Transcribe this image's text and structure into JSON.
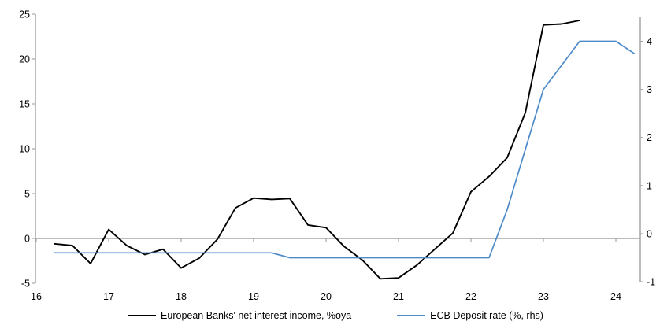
{
  "chart_data": {
    "type": "line",
    "title": "",
    "x": [
      16.25,
      16.5,
      16.75,
      17.0,
      17.25,
      17.5,
      17.75,
      18.0,
      18.25,
      18.5,
      18.75,
      19.0,
      19.25,
      19.5,
      19.75,
      20.0,
      20.25,
      20.5,
      20.75,
      21.0,
      21.25,
      21.5,
      21.75,
      22.0,
      22.25,
      22.5,
      22.75,
      23.0,
      23.25,
      23.5,
      23.75,
      24.0,
      24.25
    ],
    "series": [
      {
        "name": "European Banks' net interest income, %oya",
        "axis": "left",
        "color": "#000000",
        "values": [
          -0.6,
          -0.8,
          -2.8,
          1.0,
          -0.8,
          -1.8,
          -1.2,
          -3.3,
          -2.2,
          -0.1,
          3.4,
          4.5,
          4.35,
          4.45,
          1.5,
          1.2,
          -0.9,
          -2.4,
          -4.5,
          -4.4,
          -3.0,
          -1.2,
          0.6,
          5.2,
          6.9,
          9.0,
          14.0,
          23.8,
          23.9,
          24.3
        ]
      },
      {
        "name": "ECB Deposit rate (%, rhs)",
        "axis": "right",
        "color": "#4d8bc8",
        "values": [
          -0.4,
          -0.4,
          -0.4,
          -0.4,
          -0.4,
          -0.4,
          -0.4,
          -0.4,
          -0.4,
          -0.4,
          -0.4,
          -0.4,
          -0.4,
          -0.5,
          -0.5,
          -0.5,
          -0.5,
          -0.5,
          -0.5,
          -0.5,
          -0.5,
          -0.5,
          -0.5,
          -0.5,
          -0.5,
          0.5,
          1.75,
          3.0,
          3.5,
          4.0,
          4.0,
          4.0,
          3.75
        ]
      }
    ],
    "left_axis": {
      "ticks": [
        "25",
        "20",
        "15",
        "10",
        "5",
        "0",
        "-5"
      ],
      "tick_values": [
        25,
        20,
        15,
        10,
        5,
        0,
        -5
      ],
      "range": [
        -5,
        25
      ]
    },
    "right_axis": {
      "ticks": [
        "4",
        "3",
        "2",
        "1",
        "0",
        "-1"
      ],
      "tick_values": [
        4,
        3,
        2,
        1,
        0,
        -1
      ],
      "range": [
        -1,
        4.5
      ]
    },
    "x_axis": {
      "ticks": [
        "16",
        "17",
        "18",
        "19",
        "20",
        "21",
        "22",
        "23",
        "24"
      ],
      "tick_values": [
        16,
        17,
        18,
        19,
        20,
        21,
        22,
        23,
        24
      ],
      "range": [
        16,
        24.34
      ]
    },
    "grid": "zero-line-only",
    "legend_position": "bottom-center",
    "axis_color": "#a6a6a6"
  }
}
